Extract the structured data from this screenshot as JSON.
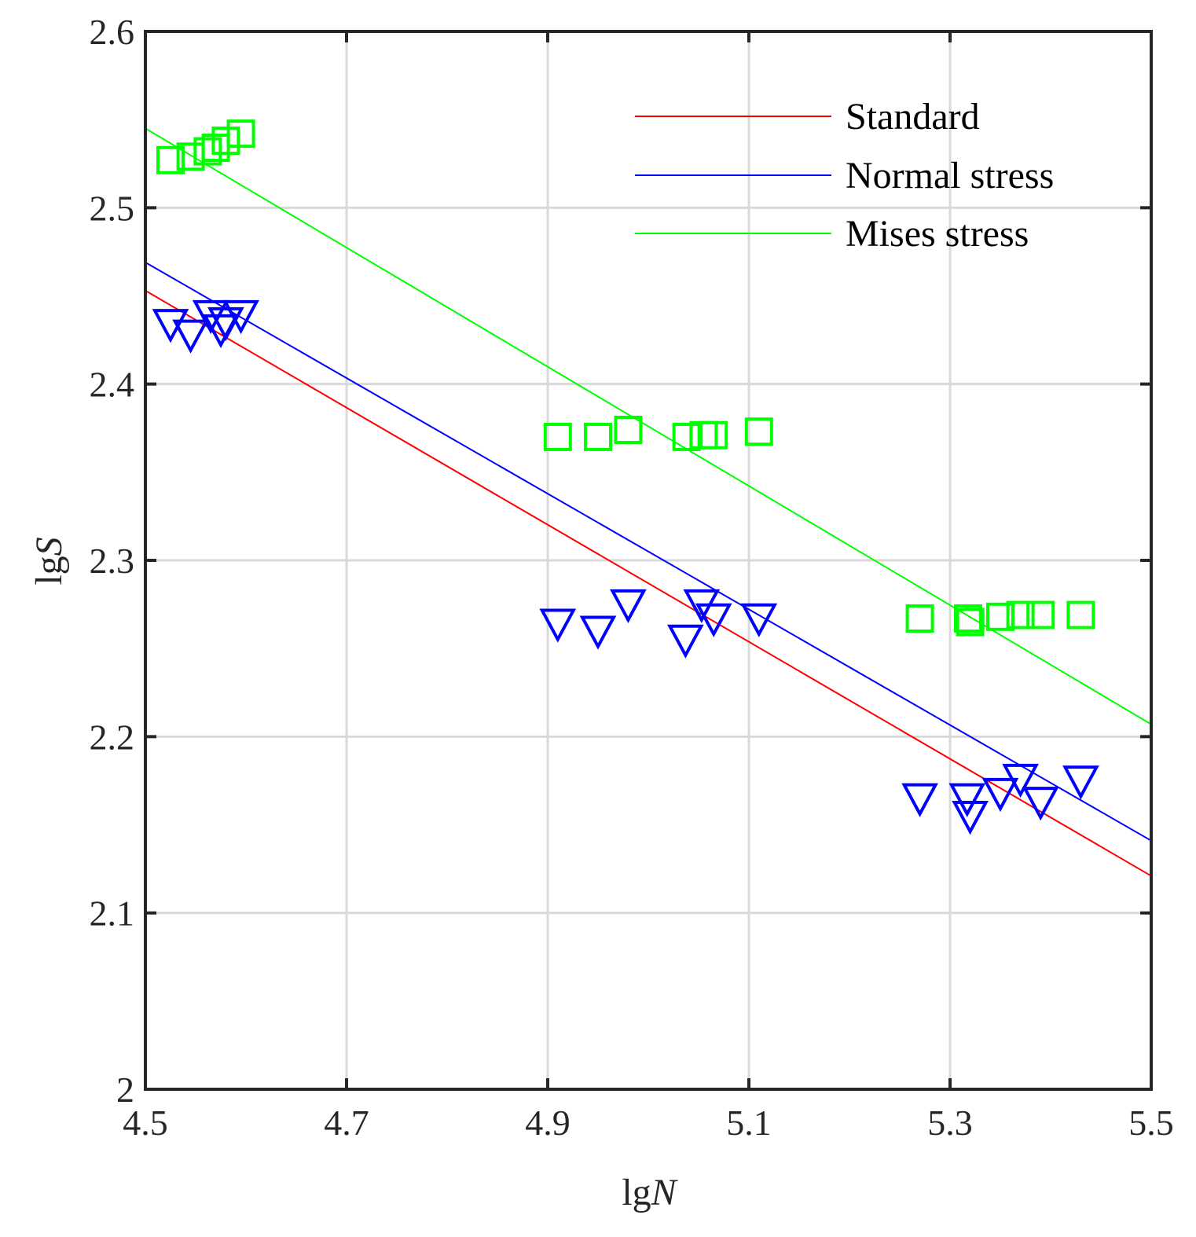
{
  "chart_data": {
    "type": "scatter",
    "title": "",
    "xlabel": {
      "prefix": "lg",
      "variable": "N"
    },
    "ylabel": {
      "prefix": "lg",
      "variable": "S"
    },
    "xlim": [
      4.5,
      5.5
    ],
    "ylim": [
      2.0,
      2.6
    ],
    "xticks": [
      4.5,
      4.7,
      4.9,
      5.1,
      5.3,
      5.5
    ],
    "xtick_labels": [
      "4.5",
      "4.7",
      "4.9",
      "5.1",
      "5.3",
      "5.5"
    ],
    "yticks": [
      2.0,
      2.1,
      2.2,
      2.3,
      2.4,
      2.5,
      2.6
    ],
    "ytick_labels": [
      "2",
      "2.1",
      "2.2",
      "2.3",
      "2.4",
      "2.5",
      "2.6"
    ],
    "grid": true,
    "legend_position": "top-right",
    "lines": [
      {
        "name": "Standard",
        "color": "#ff0000",
        "points": [
          [
            4.5,
            2.453
          ],
          [
            5.5,
            2.121
          ]
        ]
      },
      {
        "name": "Normal stress",
        "color": "#0000ff",
        "points": [
          [
            4.5,
            2.469
          ],
          [
            5.5,
            2.141
          ]
        ]
      },
      {
        "name": "Mises stress",
        "color": "#00ff00",
        "points": [
          [
            4.5,
            2.545
          ],
          [
            5.5,
            2.207
          ]
        ]
      }
    ],
    "series": [
      {
        "name": "Mises stress data",
        "marker": "square",
        "color": "#00ff00",
        "points": [
          [
            4.525,
            2.527
          ],
          [
            4.545,
            2.529
          ],
          [
            4.562,
            2.532
          ],
          [
            4.57,
            2.534
          ],
          [
            4.58,
            2.538
          ],
          [
            4.595,
            2.542
          ],
          [
            4.91,
            2.37
          ],
          [
            4.95,
            2.37
          ],
          [
            4.98,
            2.374
          ],
          [
            5.038,
            2.37
          ],
          [
            5.055,
            2.371
          ],
          [
            5.065,
            2.371
          ],
          [
            5.11,
            2.373
          ],
          [
            5.27,
            2.267
          ],
          [
            5.318,
            2.267
          ],
          [
            5.32,
            2.265
          ],
          [
            5.35,
            2.268
          ],
          [
            5.37,
            2.269
          ],
          [
            5.39,
            2.269
          ],
          [
            5.43,
            2.269
          ]
        ]
      },
      {
        "name": "Normal stress data",
        "marker": "triangle-down",
        "color": "#0000ff",
        "points": [
          [
            4.525,
            2.435
          ],
          [
            4.545,
            2.429
          ],
          [
            4.565,
            2.44
          ],
          [
            4.575,
            2.432
          ],
          [
            4.58,
            2.436
          ],
          [
            4.595,
            2.44
          ],
          [
            4.91,
            2.265
          ],
          [
            4.95,
            2.261
          ],
          [
            4.98,
            2.276
          ],
          [
            5.037,
            2.256
          ],
          [
            5.053,
            2.276
          ],
          [
            5.065,
            2.268
          ],
          [
            5.11,
            2.268
          ],
          [
            5.27,
            2.166
          ],
          [
            5.317,
            2.166
          ],
          [
            5.32,
            2.156
          ],
          [
            5.35,
            2.169
          ],
          [
            5.37,
            2.177
          ],
          [
            5.39,
            2.164
          ],
          [
            5.43,
            2.176
          ]
        ]
      }
    ]
  }
}
